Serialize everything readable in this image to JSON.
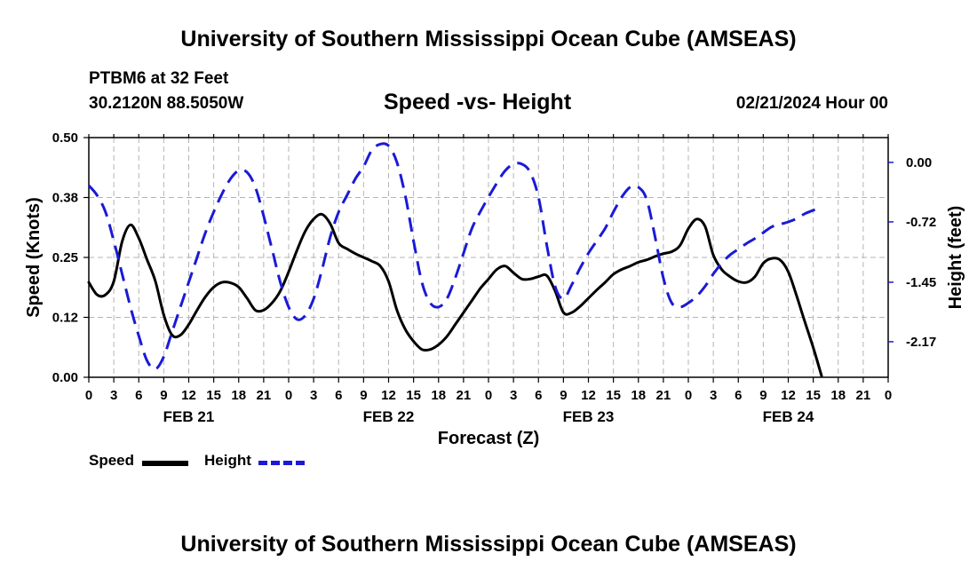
{
  "header": {
    "title": "University of Southern Mississippi Ocean Cube (AMSEAS)",
    "station": "PTBM6 at 32 Feet",
    "coords": "30.2120N  88.5050W",
    "date": "02/21/2024 Hour 00",
    "footer_title": "University of Southern Mississippi Ocean Cube (AMSEAS)"
  },
  "chart_data": {
    "type": "line",
    "title": "Speed -vs- Height",
    "xlabel": "Forecast (Z)",
    "ylabel": "Speed (Knots)",
    "ylabel_right": "Height (feet)",
    "x_range_hours": [
      0,
      96
    ],
    "ylim": [
      0,
      0.5
    ],
    "ylim_right": [
      -2.6,
      0.3
    ],
    "x_tick_labels": [
      "0",
      "3",
      "6",
      "9",
      "12",
      "15",
      "18",
      "21",
      "0",
      "3",
      "6",
      "9",
      "12",
      "15",
      "18",
      "21",
      "0",
      "3",
      "6",
      "9",
      "12",
      "15",
      "18",
      "21",
      "0",
      "3",
      "6",
      "9",
      "12",
      "15",
      "18",
      "21",
      "0"
    ],
    "date_labels": [
      "FEB 21",
      "FEB 22",
      "FEB 23",
      "FEB 24"
    ],
    "y_ticks": [
      {
        "value": 0.0,
        "label": "0.00"
      },
      {
        "value": 0.125,
        "label": "0.12"
      },
      {
        "value": 0.25,
        "label": "0.25"
      },
      {
        "value": 0.375,
        "label": "0.38"
      },
      {
        "value": 0.5,
        "label": "0.50"
      }
    ],
    "y_ticks_right": [
      {
        "value": 0.0,
        "label": "0.00"
      },
      {
        "value": -0.72,
        "label": "-0.72"
      },
      {
        "value": -1.45,
        "label": "-1.45"
      },
      {
        "value": -2.17,
        "label": "-2.17"
      }
    ],
    "series": [
      {
        "name": "Speed",
        "axis": "left",
        "color": "#000000",
        "x": [
          0,
          1,
          2,
          3,
          4,
          5,
          6,
          7,
          8,
          9,
          10,
          11,
          12,
          13,
          14,
          15,
          16,
          17,
          18,
          19,
          20,
          21,
          22,
          23,
          24,
          25,
          26,
          27,
          28,
          29,
          30,
          31,
          32,
          33,
          34,
          35,
          36,
          37,
          38,
          39,
          40,
          41,
          42,
          43,
          44,
          45,
          46,
          47,
          48,
          49,
          50,
          51,
          52,
          53,
          54,
          55,
          56,
          57,
          58,
          59,
          60,
          61,
          62,
          63,
          64,
          65,
          66,
          67,
          68,
          69,
          70,
          71,
          72,
          73,
          74,
          75,
          76,
          77,
          78,
          79,
          80,
          81,
          82,
          83,
          84,
          85,
          86,
          87,
          88,
          89,
          90,
          91,
          92,
          93,
          94,
          95,
          96
        ],
        "values": [
          0.198,
          0.172,
          0.172,
          0.2,
          0.283,
          0.318,
          0.29,
          0.245,
          0.2,
          0.13,
          0.088,
          0.088,
          0.11,
          0.14,
          0.168,
          0.188,
          0.198,
          0.197,
          0.188,
          0.165,
          0.14,
          0.14,
          0.155,
          0.18,
          0.22,
          0.265,
          0.305,
          0.33,
          0.34,
          0.32,
          0.28,
          0.268,
          0.258,
          0.25,
          0.242,
          0.232,
          0.2,
          0.14,
          0.1,
          0.075,
          0.058,
          0.058,
          0.068,
          0.085,
          0.11,
          0.135,
          0.16,
          0.185,
          0.205,
          0.225,
          0.232,
          0.218,
          0.205,
          0.205,
          0.21,
          0.212,
          0.18,
          0.135,
          0.135,
          0.148,
          0.165,
          0.182,
          0.198,
          0.215,
          0.225,
          0.232,
          0.24,
          0.245,
          0.252,
          0.258,
          0.262,
          0.275,
          0.31,
          0.33,
          0.315,
          0.255,
          0.225,
          0.21,
          0.2,
          0.198,
          0.21,
          0.238,
          0.248,
          0.245,
          0.22,
          0.17,
          0.115,
          0.062,
          0.003,
          null,
          null,
          null,
          null,
          null,
          null,
          null,
          null
        ]
      },
      {
        "name": "Height",
        "axis": "right",
        "color": "#1a1ad6",
        "x": [
          0,
          1,
          2,
          3,
          4,
          5,
          6,
          7,
          8,
          9,
          10,
          11,
          12,
          13,
          14,
          15,
          16,
          17,
          18,
          19,
          20,
          21,
          22,
          23,
          24,
          25,
          26,
          27,
          28,
          29,
          30,
          31,
          32,
          33,
          34,
          35,
          36,
          37,
          38,
          39,
          40,
          41,
          42,
          43,
          44,
          45,
          46,
          47,
          48,
          49,
          50,
          51,
          52,
          53,
          54,
          55,
          56,
          57,
          58,
          59,
          60,
          61,
          62,
          63,
          64,
          65,
          66,
          67,
          68,
          69,
          70,
          71,
          72,
          73,
          74,
          75,
          76,
          77,
          78,
          79,
          80,
          81,
          82,
          83,
          84,
          85,
          86,
          87,
          88,
          89,
          90,
          91,
          92,
          93,
          94,
          95,
          96
        ],
        "values": [
          -0.28,
          -0.4,
          -0.6,
          -0.95,
          -1.35,
          -1.75,
          -2.1,
          -2.4,
          -2.5,
          -2.35,
          -2.05,
          -1.75,
          -1.45,
          -1.15,
          -0.85,
          -0.6,
          -0.38,
          -0.2,
          -0.1,
          -0.12,
          -0.3,
          -0.65,
          -1.05,
          -1.45,
          -1.75,
          -1.9,
          -1.85,
          -1.65,
          -1.3,
          -0.9,
          -0.6,
          -0.4,
          -0.2,
          -0.05,
          0.15,
          0.22,
          0.2,
          0.0,
          -0.4,
          -0.95,
          -1.45,
          -1.7,
          -1.75,
          -1.65,
          -1.4,
          -1.1,
          -0.8,
          -0.6,
          -0.42,
          -0.25,
          -0.1,
          -0.02,
          -0.02,
          -0.12,
          -0.42,
          -1.0,
          -1.5,
          -1.65,
          -1.48,
          -1.28,
          -1.1,
          -0.95,
          -0.8,
          -0.6,
          -0.42,
          -0.3,
          -0.3,
          -0.45,
          -0.9,
          -1.4,
          -1.7,
          -1.75,
          -1.7,
          -1.62,
          -1.5,
          -1.35,
          -1.22,
          -1.12,
          -1.05,
          -0.98,
          -0.92,
          -0.85,
          -0.78,
          -0.75,
          -0.72,
          -0.68,
          -0.62,
          -0.58,
          -0.54,
          null,
          null,
          null,
          null,
          null,
          null,
          null,
          null
        ]
      }
    ],
    "legend": {
      "position": "bottom-left",
      "entries": [
        "Speed",
        "Height"
      ]
    }
  }
}
